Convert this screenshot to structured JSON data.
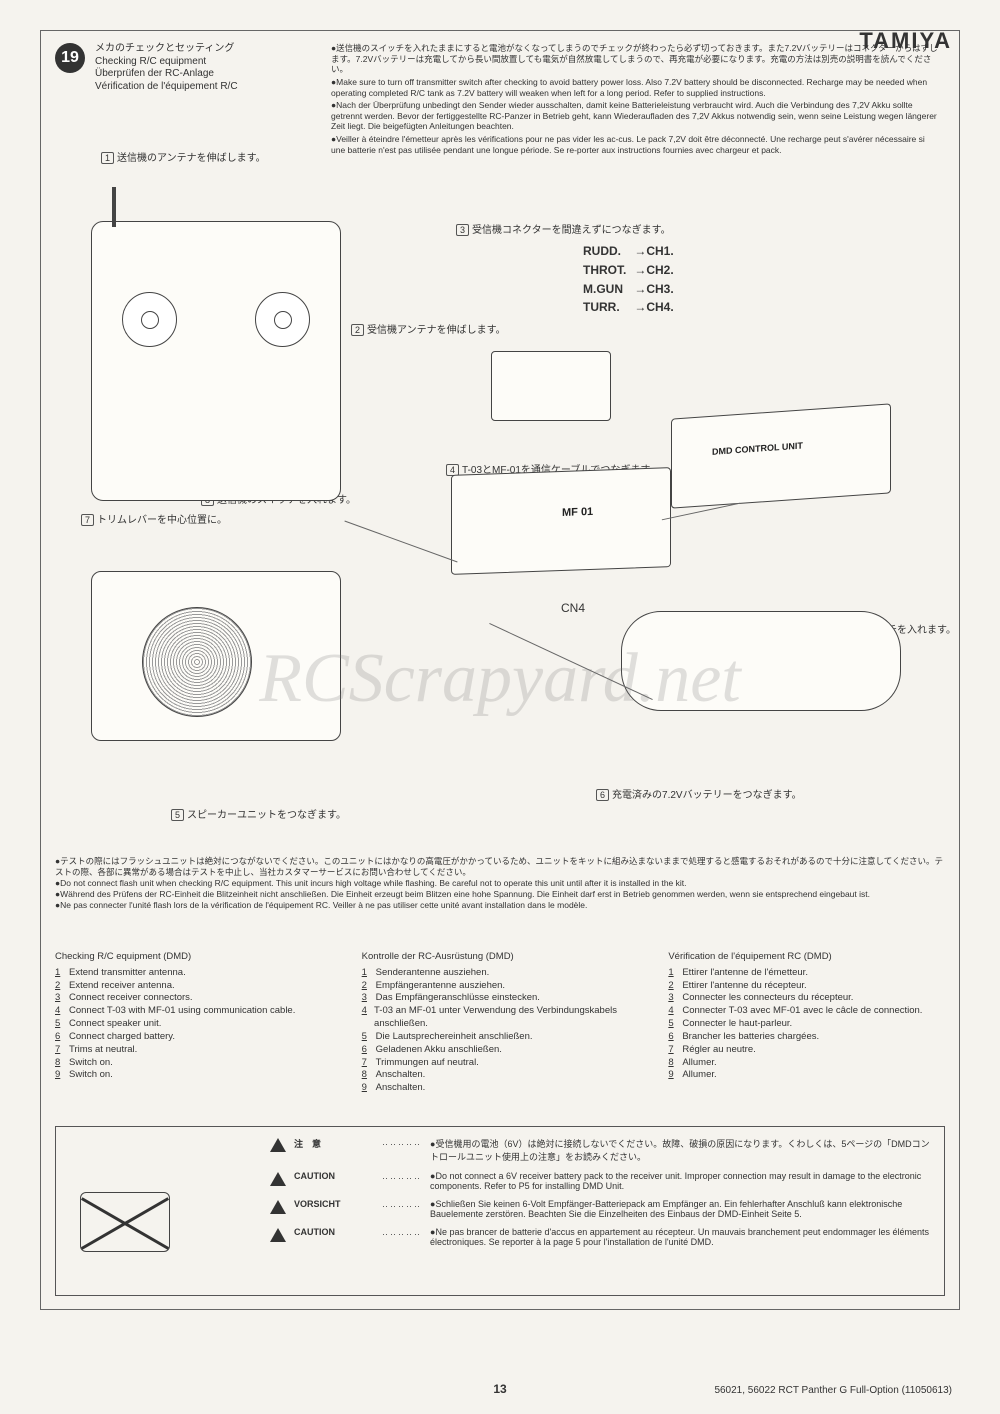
{
  "brand": "TAMIYA",
  "step": {
    "number": "19",
    "title_jp": "メカのチェックとセッティング",
    "title_en": "Checking R/C equipment",
    "title_de": "Überprüfen der RC-Anlage",
    "title_fr": "Vérification de l'équipement R/C"
  },
  "intro": {
    "jp1": "●送信機のスイッチを入れたままにすると電池がなくなってしまうのでチェックが終わったら必ず切っておきます。また7.2Vバッテリーはコネクターからはずします。7.2Vバッテリーは充電してから長い間放置しても電気が自然放電してしまうので、再充電が必要になります。充電の方法は別売の説明書を読んでください。",
    "en1": "●Make sure to turn off transmitter switch after checking to avoid battery power loss. Also 7.2V battery should be disconnected. Recharge may be needed when operating completed R/C tank as 7.2V battery will weaken when left for a long period. Refer to supplied instructions.",
    "de1": "●Nach der Überprüfung unbedingt den Sender wieder ausschalten, damit keine Batterieleistung verbraucht wird. Auch die Verbindung des 7,2V Akku sollte getrennt werden. Bevor der fertiggestellte RC-Panzer in Betrieb geht, kann Wiederaufladen des 7,2V Akkus notwendig sein, wenn seine Leistung wegen längerer Zeit liegt. Die beigefügten Anleitungen beachten.",
    "fr1": "●Veiller à éteindre l'émetteur après les vérifications pour ne pas vider les ac-cus. Le pack 7,2V doit être déconnecté. Une recharge peut s'avérer nécessaire si une batterie n'est pas utilisée pendant une longue période. Se re-porter aux instructions fournies avec chargeur et pack."
  },
  "channels": {
    "rudd": "RUDD.",
    "rudd_ch": "→CH1.",
    "throt": "THROT.",
    "throt_ch": "→CH2.",
    "mgun": "M.GUN",
    "mgun_ch": "→CH3.",
    "turr": "TURR.",
    "turr_ch": "→CH4."
  },
  "callouts": {
    "c1": "送信機のアンテナを伸ばします。",
    "c2": "受信機アンテナを伸ばします。",
    "c3": "受信機コネクターを間違えずにつなぎます。",
    "c4": "T-03とMF-01を通信ケーブルでつなぎます。",
    "c5": "スピーカーユニットをつなぎます。",
    "c6": "充電済みの7.2Vバッテリーをつなぎます。",
    "c7": "トリムレバーを中心位置に。",
    "c8": "送信機のスイッチを入れます。",
    "c9": "T-03のスイッチを入れます。"
  },
  "labels": {
    "mf01": "MF 01",
    "dmd": "DMD CONTROL UNIT",
    "cn4": "CN4"
  },
  "warning": {
    "jp": "●テストの際にはフラッシュユニットは絶対につながないでください。このユニットにはかなりの高電圧がかかっているため、ユニットをキットに組み込まないままで処理すると感電するおそれがあるので十分に注意してください。テストの際、各部に異常がある場合はテストを中止し、当社カスタマーサービスにお問い合わせしてください。",
    "en": "●Do not connect flash unit when checking R/C equipment. This unit incurs high voltage while flashing. Be careful not to operate this unit until after it is installed in the kit.",
    "de": "●Während des Prüfens der RC-Einheit die Blitzeinheit nicht anschließen. Die Einheit erzeugt beim Blitzen eine hohe Spannung. Die Einheit darf erst in Betrieb genommen werden, wenn sie entsprechend eingebaut ist.",
    "fr": "●Ne pas connecter l'unité flash lors de la vérification de l'équipement RC. Veiller à ne pas utiliser cette unité avant installation dans le modèle."
  },
  "checklists": {
    "en": {
      "title": "Checking R/C equipment (DMD)",
      "items": [
        "Extend transmitter antenna.",
        "Extend receiver antenna.",
        "Connect receiver connectors.",
        "Connect T-03 with MF-01 using communication cable.",
        "Connect speaker unit.",
        "Connect charged battery.",
        "Trims at neutral.",
        "Switch on.",
        "Switch on."
      ]
    },
    "de": {
      "title": "Kontrolle der RC-Ausrüstung (DMD)",
      "items": [
        "Senderantenne ausziehen.",
        "Empfängerantenne ausziehen.",
        "Das Empfängeranschlüsse einstecken.",
        "T-03 an MF-01 unter Verwendung des Verbindungskabels anschließen.",
        "Die Lautsprechereinheit anschließen.",
        "Geladenen Akku anschließen.",
        "Trimmungen auf neutral.",
        "Anschalten.",
        "Anschalten."
      ]
    },
    "fr": {
      "title": "Vérification de l'équipement RC (DMD)",
      "items": [
        "Ettirer l'antenne de l'émetteur.",
        "Ettirer l'antenne du récepteur.",
        "Connecter les connecteurs du récepteur.",
        "Connecter T-03 avec MF-01 avec le câcle de connection.",
        "Connecter le haut-parleur.",
        "Brancher les batteries chargées.",
        "Régler au neutre.",
        "Allumer.",
        "Allumer."
      ]
    }
  },
  "caution": {
    "jp_label": "注　意",
    "jp_text": "●受信機用の電池（6V）は絶対に接続しないでください。故障、破損の原因になります。くわしくは、5ページの「DMDコントロールユニット使用上の注意」をお読みください。",
    "en_label": "CAUTION",
    "en_text": "●Do not connect a 6V receiver battery pack to the receiver unit. Improper connection may result in damage to the electronic components. Refer to P5 for installing DMD Unit.",
    "de_label": "VORSICHT",
    "de_text": "●Schließen Sie keinen 6-Volt Empfänger-Batteriepack am Empfänger an. Ein fehlerhafter Anschluß kann elektronische Bauelemente zerstören. Beachten Sie die Einzelheiten des Einbaus der DMD-Einheit Seite 5.",
    "fr_label": "CAUTION",
    "fr_text": "●Ne pas brancer de batterie d'accus en appartement au récepteur. Un mauvais branchement peut endommager les éléments électroniques. Se reporter à la page 5 pour l'installation de l'unité DMD."
  },
  "page_number": "13",
  "footer_right": "56021, 56022 RCT Panther G Full-Option (11050613)",
  "watermark": "RCScrapyard.net"
}
